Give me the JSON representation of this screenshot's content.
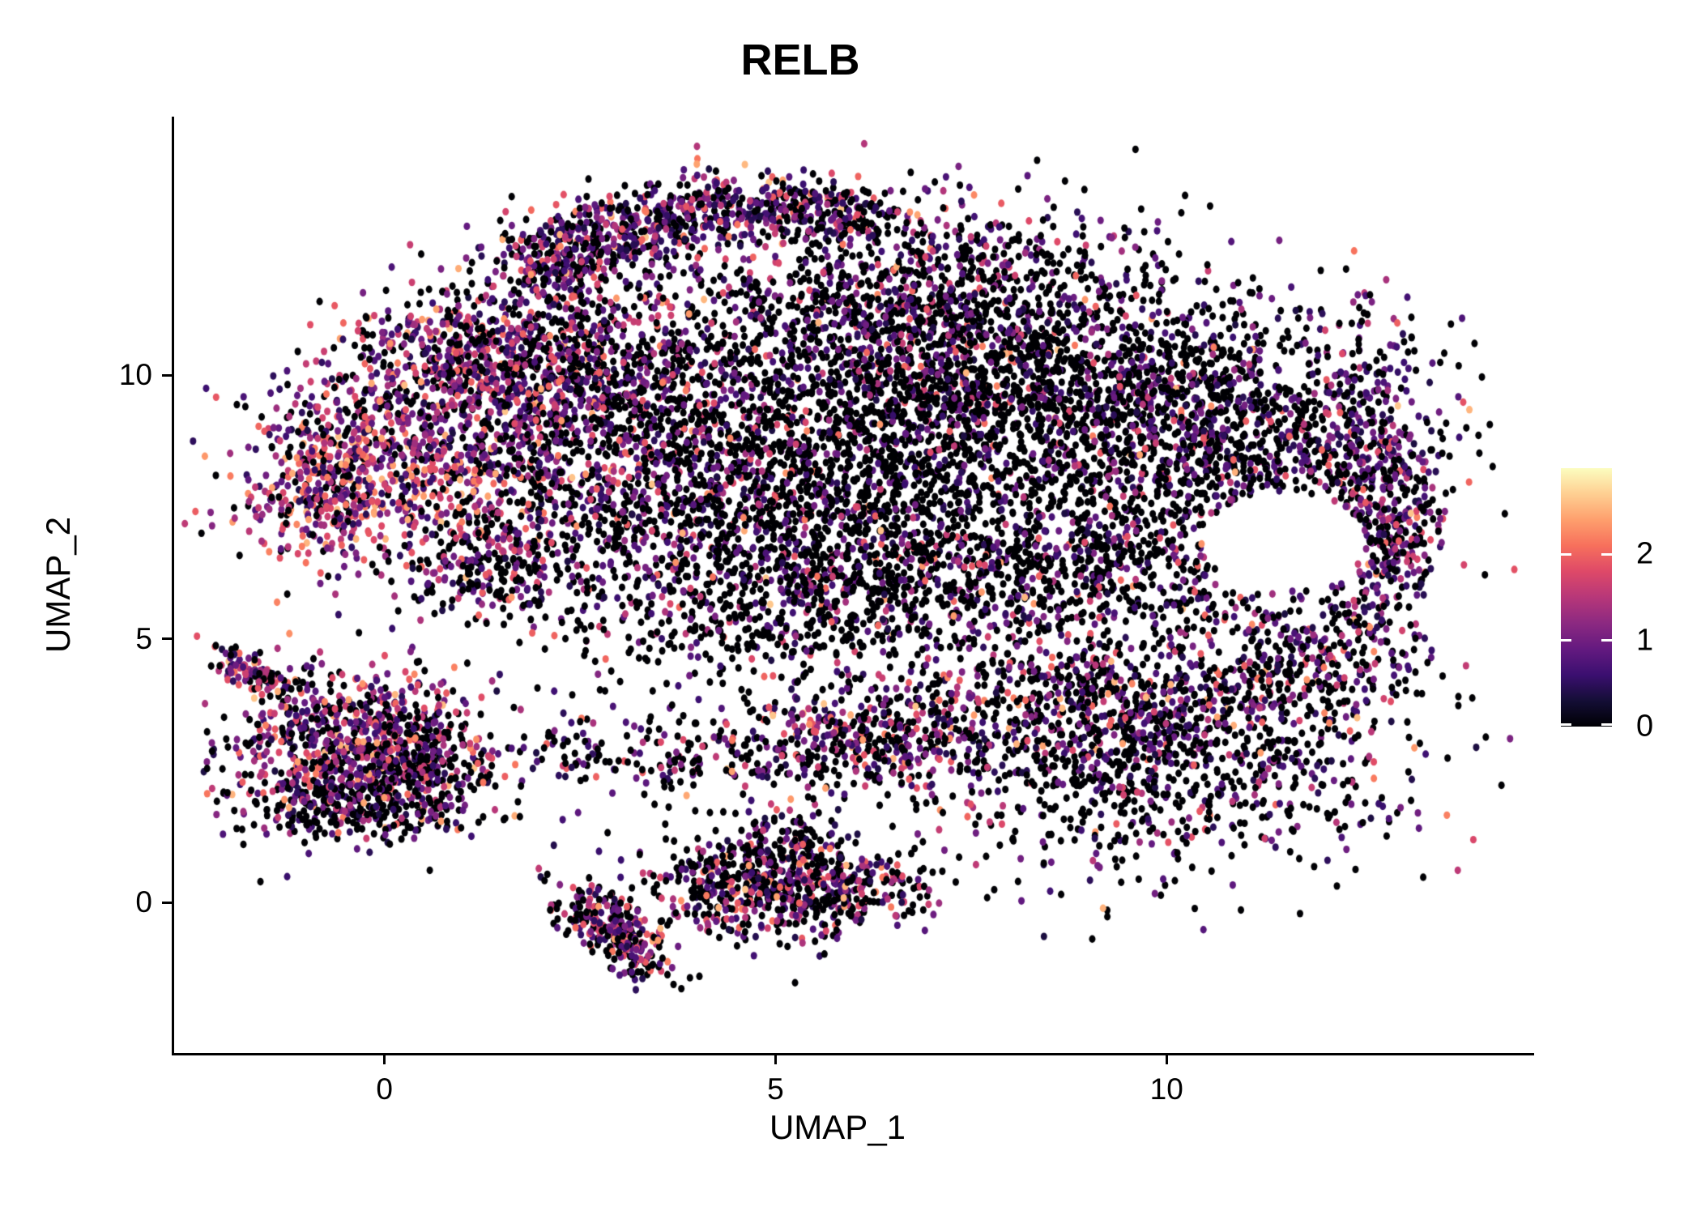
{
  "title": "RELB",
  "chart_data": {
    "type": "scatter",
    "subtype": "umap-feature-plot",
    "title": "RELB",
    "xlabel": "UMAP_1",
    "ylabel": "UMAP_2",
    "xlim": [
      -2.7,
      14.7
    ],
    "ylim": [
      -2.85,
      14.9
    ],
    "grid": false,
    "background": "#ffffff",
    "x_ticks": [
      {
        "value": 0,
        "label": "0"
      },
      {
        "value": 5,
        "label": "5"
      },
      {
        "value": 10,
        "label": "10"
      }
    ],
    "y_ticks": [
      {
        "value": 0,
        "label": "0"
      },
      {
        "value": 5,
        "label": "5"
      },
      {
        "value": 10,
        "label": "10"
      }
    ],
    "legend": {
      "position": "right",
      "type": "colorbar",
      "domain": [
        0,
        3
      ],
      "ticks": [
        {
          "value": 0,
          "label": "0"
        },
        {
          "value": 1,
          "label": "1"
        },
        {
          "value": 2,
          "label": "2"
        }
      ]
    },
    "colormap": {
      "name": "magma",
      "stops": [
        {
          "t": 0.0,
          "rgb": [
            0,
            0,
            4
          ]
        },
        {
          "t": 0.1,
          "rgb": [
            20,
            14,
            54
          ]
        },
        {
          "t": 0.2,
          "rgb": [
            59,
            15,
            112
          ]
        },
        {
          "t": 0.3,
          "rgb": [
            100,
            26,
            128
          ]
        },
        {
          "t": 0.4,
          "rgb": [
            140,
            41,
            129
          ]
        },
        {
          "t": 0.5,
          "rgb": [
            183,
            55,
            121
          ]
        },
        {
          "t": 0.6,
          "rgb": [
            222,
            73,
            104
          ]
        },
        {
          "t": 0.7,
          "rgb": [
            247,
            112,
            92
          ]
        },
        {
          "t": 0.8,
          "rgb": [
            254,
            159,
            109
          ]
        },
        {
          "t": 0.9,
          "rgb": [
            254,
            207,
            146
          ]
        },
        {
          "t": 1.0,
          "rgb": [
            252,
            253,
            191
          ]
        }
      ]
    },
    "point_style": {
      "rx": 4.0,
      "ry": 4.7,
      "opacity": 1
    },
    "seed": 7,
    "expression_bins": {
      "zero": 0,
      "low": [
        0.35,
        1.15
      ],
      "mid": [
        1.25,
        2.05
      ],
      "high": [
        2.1,
        2.65
      ]
    },
    "holes": [
      {
        "cx": 11.5,
        "cy": 6.85,
        "rx": 1.05,
        "ry": 0.95
      }
    ],
    "clusters": [
      {
        "name": "cap-left",
        "n": 420,
        "cx": 3.1,
        "cy": 12.75,
        "sx": 0.85,
        "sy": 0.38,
        "rot": 18,
        "p": [
          0.33,
          0.42,
          0.21,
          0.04
        ]
      },
      {
        "name": "cap-right",
        "n": 380,
        "cx": 5.3,
        "cy": 13.1,
        "sx": 0.85,
        "sy": 0.32,
        "rot": -6,
        "p": [
          0.38,
          0.42,
          0.17,
          0.03
        ]
      },
      {
        "name": "cap-tip",
        "n": 160,
        "cx": 2.2,
        "cy": 12.1,
        "sx": 0.4,
        "sy": 0.45,
        "rot": 0,
        "p": [
          0.3,
          0.4,
          0.25,
          0.05
        ]
      },
      {
        "name": "under-cap-sparse",
        "n": 260,
        "cx": 5.4,
        "cy": 11.7,
        "sx": 1.4,
        "sy": 0.75,
        "rot": 0,
        "p": [
          0.62,
          0.28,
          0.09,
          0.01
        ]
      },
      {
        "name": "top-right-sparse",
        "n": 300,
        "cx": 7.7,
        "cy": 12.0,
        "sx": 1.1,
        "sy": 0.65,
        "rot": 0,
        "p": [
          0.6,
          0.3,
          0.09,
          0.01
        ]
      },
      {
        "name": "left-lobe-hot",
        "n": 850,
        "cx": 0.45,
        "cy": 8.4,
        "sx": 1.05,
        "sy": 1.05,
        "rot": 0,
        "p": [
          0.22,
          0.36,
          0.32,
          0.1
        ]
      },
      {
        "name": "left-edge-hot",
        "n": 240,
        "cx": -0.85,
        "cy": 7.9,
        "sx": 0.45,
        "sy": 0.75,
        "rot": 0,
        "p": [
          0.15,
          0.32,
          0.38,
          0.15
        ]
      },
      {
        "name": "upper-left",
        "n": 750,
        "cx": 2.3,
        "cy": 10.1,
        "sx": 1.05,
        "sy": 0.85,
        "rot": 0,
        "p": [
          0.45,
          0.35,
          0.17,
          0.03
        ]
      },
      {
        "name": "top-left-edge",
        "n": 330,
        "cx": 0.9,
        "cy": 10.5,
        "sx": 0.7,
        "sy": 0.6,
        "rot": 0,
        "p": [
          0.35,
          0.4,
          0.2,
          0.05
        ]
      },
      {
        "name": "mid-left-body",
        "n": 850,
        "cx": 3.3,
        "cy": 8.1,
        "sx": 1.25,
        "sy": 1.15,
        "rot": 0,
        "p": [
          0.55,
          0.3,
          0.13,
          0.02
        ]
      },
      {
        "name": "center-black",
        "n": 1350,
        "cx": 5.9,
        "cy": 8.0,
        "sx": 1.55,
        "sy": 1.35,
        "rot": 0,
        "p": [
          0.74,
          0.19,
          0.06,
          0.01
        ]
      },
      {
        "name": "center-top",
        "n": 850,
        "cx": 6.6,
        "cy": 10.5,
        "sx": 1.6,
        "sy": 0.95,
        "rot": 0,
        "p": [
          0.6,
          0.29,
          0.1,
          0.01
        ]
      },
      {
        "name": "right-top-black",
        "n": 1250,
        "cx": 8.9,
        "cy": 9.5,
        "sx": 1.55,
        "sy": 1.15,
        "rot": 0,
        "p": [
          0.68,
          0.25,
          0.06,
          0.01
        ]
      },
      {
        "name": "right-body",
        "n": 850,
        "cx": 10.9,
        "cy": 8.7,
        "sx": 1.25,
        "sy": 1.15,
        "rot": 0,
        "p": [
          0.62,
          0.28,
          0.09,
          0.01
        ]
      },
      {
        "name": "right-rim",
        "n": 430,
        "cx": 12.55,
        "cy": 7.9,
        "sx": 0.45,
        "sy": 1.55,
        "rot": 0,
        "p": [
          0.35,
          0.45,
          0.18,
          0.02
        ]
      },
      {
        "name": "right-tip",
        "n": 140,
        "cx": 13.0,
        "cy": 7.0,
        "sx": 0.3,
        "sy": 0.7,
        "rot": 0,
        "p": [
          0.4,
          0.4,
          0.18,
          0.02
        ]
      },
      {
        "name": "bottom-edge",
        "n": 650,
        "cx": 5.6,
        "cy": 6.1,
        "sx": 2.1,
        "sy": 0.65,
        "rot": 0,
        "p": [
          0.62,
          0.28,
          0.09,
          0.01
        ]
      },
      {
        "name": "bottom-right-edge",
        "n": 550,
        "cx": 9.4,
        "cy": 6.2,
        "sx": 1.5,
        "sy": 0.75,
        "rot": 0,
        "p": [
          0.66,
          0.25,
          0.08,
          0.01
        ]
      },
      {
        "name": "left-bottom-edge",
        "n": 170,
        "cx": 1.4,
        "cy": 6.4,
        "sx": 0.55,
        "sy": 0.5,
        "rot": 0,
        "p": [
          0.5,
          0.35,
          0.13,
          0.02
        ]
      },
      {
        "name": "below-blob-sparse",
        "n": 150,
        "cx": 5.0,
        "cy": 4.9,
        "sx": 1.7,
        "sy": 0.4,
        "rot": 0,
        "p": [
          0.7,
          0.22,
          0.07,
          0.01
        ]
      },
      {
        "name": "stream",
        "n": 430,
        "cx": 4.3,
        "cy": 2.8,
        "sx": 2.3,
        "sy": 0.45,
        "rot": 0,
        "p": [
          0.5,
          0.3,
          0.16,
          0.04
        ]
      },
      {
        "name": "stream-mid-dense",
        "n": 240,
        "cx": 6.4,
        "cy": 3.3,
        "sx": 0.85,
        "sy": 0.4,
        "rot": 0,
        "p": [
          0.42,
          0.3,
          0.23,
          0.05
        ]
      },
      {
        "name": "lower-right-lobe",
        "n": 1050,
        "cx": 9.9,
        "cy": 2.7,
        "sx": 1.6,
        "sy": 1.05,
        "rot": 0,
        "p": [
          0.63,
          0.26,
          0.09,
          0.02
        ]
      },
      {
        "name": "lower-right-top",
        "n": 420,
        "cx": 9.2,
        "cy": 4.0,
        "sx": 1.5,
        "sy": 0.5,
        "rot": 0,
        "p": [
          0.55,
          0.28,
          0.14,
          0.03
        ]
      },
      {
        "name": "right-connect",
        "n": 220,
        "cx": 11.9,
        "cy": 4.8,
        "sx": 0.75,
        "sy": 0.65,
        "rot": 0,
        "p": [
          0.5,
          0.3,
          0.16,
          0.04
        ]
      },
      {
        "name": "left-cluster",
        "n": 780,
        "cx": -0.35,
        "cy": 2.95,
        "sx": 0.8,
        "sy": 0.75,
        "rot": 0,
        "p": [
          0.28,
          0.38,
          0.28,
          0.06
        ]
      },
      {
        "name": "left-cluster-right",
        "n": 170,
        "cx": 0.45,
        "cy": 2.6,
        "sx": 0.4,
        "sy": 0.6,
        "rot": 0,
        "p": [
          0.45,
          0.35,
          0.17,
          0.03
        ]
      },
      {
        "name": "left-cluster-fringe",
        "n": 230,
        "cx": -0.45,
        "cy": 1.8,
        "sx": 0.75,
        "sy": 0.3,
        "rot": 0,
        "p": [
          0.75,
          0.19,
          0.05,
          0.01
        ]
      },
      {
        "name": "left-antenna",
        "n": 110,
        "cx": -1.6,
        "cy": 4.3,
        "sx": 0.45,
        "sy": 0.14,
        "rot": -40,
        "p": [
          0.28,
          0.38,
          0.27,
          0.07
        ]
      },
      {
        "name": "bottom-tail",
        "n": 270,
        "cx": 2.95,
        "cy": -0.55,
        "sx": 0.5,
        "sy": 0.22,
        "rot": -55,
        "p": [
          0.33,
          0.34,
          0.26,
          0.07
        ]
      },
      {
        "name": "bottom-mid",
        "n": 420,
        "cx": 4.55,
        "cy": 0.3,
        "sx": 0.7,
        "sy": 0.5,
        "rot": 0,
        "p": [
          0.52,
          0.28,
          0.16,
          0.04
        ]
      },
      {
        "name": "bottom-right",
        "n": 280,
        "cx": 5.9,
        "cy": 0.2,
        "sx": 0.65,
        "sy": 0.35,
        "rot": 0,
        "p": [
          0.45,
          0.3,
          0.2,
          0.05
        ]
      },
      {
        "name": "bottom-spur",
        "n": 110,
        "cx": 5.2,
        "cy": 1.1,
        "sx": 0.35,
        "sy": 0.4,
        "rot": 0,
        "p": [
          0.55,
          0.3,
          0.12,
          0.03
        ]
      },
      {
        "name": "scatter-wide",
        "n": 180,
        "cx": 6.5,
        "cy": 8.5,
        "sx": 3.2,
        "sy": 2.6,
        "rot": 0,
        "p": [
          0.75,
          0.2,
          0.05,
          0.0
        ]
      }
    ]
  }
}
